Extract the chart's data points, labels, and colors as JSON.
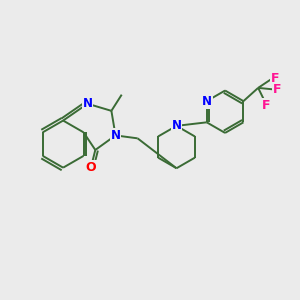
{
  "bg_color": "#ebebeb",
  "bond_color": "#3a6b35",
  "n_color": "#0000ff",
  "o_color": "#ff0000",
  "f_color": "#ff1493",
  "line_width": 1.4,
  "figsize": [
    3.0,
    3.0
  ],
  "dpi": 100,
  "xlim": [
    0,
    10
  ],
  "ylim": [
    0,
    10
  ]
}
